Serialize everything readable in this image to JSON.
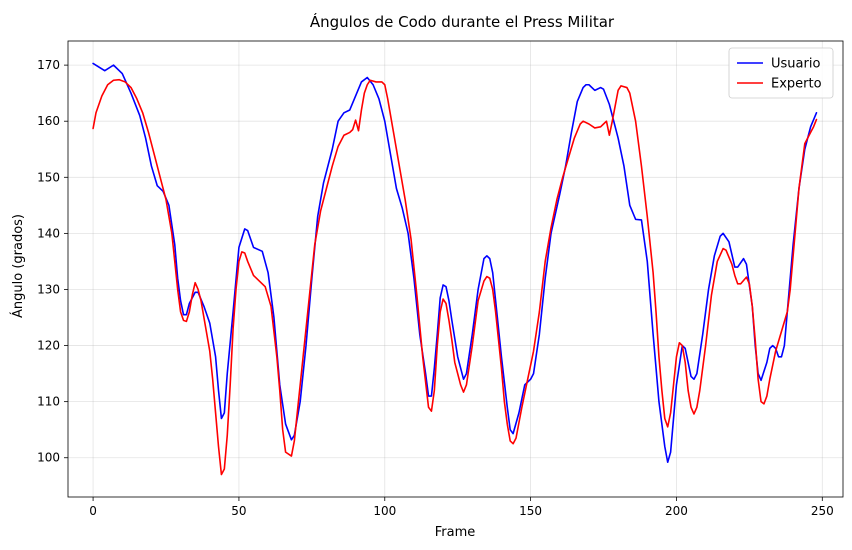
{
  "chart_data": {
    "type": "line",
    "title": "Ángulos de Codo durante el Press Militar",
    "xlabel": "Frame",
    "ylabel": "Ángulo (grados)",
    "xlim": [
      -8.6,
      257.1
    ],
    "ylim": [
      93.0,
      174.3
    ],
    "xticks": [
      0,
      50,
      100,
      150,
      200,
      250
    ],
    "yticks": [
      100,
      110,
      120,
      130,
      140,
      150,
      160,
      170
    ],
    "grid": true,
    "legend_position": "top-right",
    "series": [
      {
        "name": "Usuario",
        "color": "#0000ff",
        "points": [
          [
            0,
            170.3
          ],
          [
            4,
            169.0
          ],
          [
            7,
            170.0
          ],
          [
            10,
            168.5
          ],
          [
            13,
            165.0
          ],
          [
            16,
            161.0
          ],
          [
            18,
            157.0
          ],
          [
            20,
            152.0
          ],
          [
            22,
            148.5
          ],
          [
            24,
            147.5
          ],
          [
            26,
            145.0
          ],
          [
            28,
            138.0
          ],
          [
            29,
            132.0
          ],
          [
            30,
            128.0
          ],
          [
            31,
            125.5
          ],
          [
            32,
            125.5
          ],
          [
            33,
            127.5
          ],
          [
            35,
            129.5
          ],
          [
            36,
            129.5
          ],
          [
            38,
            127.0
          ],
          [
            40,
            124.0
          ],
          [
            42,
            118.0
          ],
          [
            43,
            112.0
          ],
          [
            44,
            107.0
          ],
          [
            45,
            108.0
          ],
          [
            46,
            115.0
          ],
          [
            48,
            126.0
          ],
          [
            50,
            137.5
          ],
          [
            52,
            140.8
          ],
          [
            53,
            140.5
          ],
          [
            55,
            137.5
          ],
          [
            58,
            136.8
          ],
          [
            60,
            133.0
          ],
          [
            62,
            125.0
          ],
          [
            64,
            113.0
          ],
          [
            66,
            106.0
          ],
          [
            68,
            103.2
          ],
          [
            69,
            104.0
          ],
          [
            71,
            110.0
          ],
          [
            73,
            120.0
          ],
          [
            75,
            132.0
          ],
          [
            77,
            143.0
          ],
          [
            79,
            149.0
          ],
          [
            82,
            155.0
          ],
          [
            84,
            160.0
          ],
          [
            86,
            161.5
          ],
          [
            88,
            162.0
          ],
          [
            90,
            164.5
          ],
          [
            92,
            167.0
          ],
          [
            94,
            167.8
          ],
          [
            96,
            166.5
          ],
          [
            98,
            164.0
          ],
          [
            100,
            160.0
          ],
          [
            102,
            154.0
          ],
          [
            104,
            148.0
          ],
          [
            106,
            144.5
          ],
          [
            108,
            140.0
          ],
          [
            110,
            132.0
          ],
          [
            112,
            122.0
          ],
          [
            114,
            115.0
          ],
          [
            115,
            111.0
          ],
          [
            116,
            111.0
          ],
          [
            117,
            116.0
          ],
          [
            118,
            122.0
          ],
          [
            119,
            128.5
          ],
          [
            120,
            130.8
          ],
          [
            121,
            130.5
          ],
          [
            122,
            128.0
          ],
          [
            123,
            124.5
          ],
          [
            125,
            118.0
          ],
          [
            127,
            114.0
          ],
          [
            128,
            115.0
          ],
          [
            130,
            122.0
          ],
          [
            132,
            130.0
          ],
          [
            134,
            135.5
          ],
          [
            135,
            136.0
          ],
          [
            136,
            135.5
          ],
          [
            137,
            133.0
          ],
          [
            138,
            128.0
          ],
          [
            140,
            118.0
          ],
          [
            142,
            109.0
          ],
          [
            143,
            105.0
          ],
          [
            144,
            104.3
          ],
          [
            146,
            108.0
          ],
          [
            148,
            113.0
          ],
          [
            150,
            114.0
          ],
          [
            151,
            115.0
          ],
          [
            153,
            122.0
          ],
          [
            155,
            132.0
          ],
          [
            157,
            140.0
          ],
          [
            160,
            147.0
          ],
          [
            162,
            152.0
          ],
          [
            164,
            158.0
          ],
          [
            166,
            163.5
          ],
          [
            168,
            166.0
          ],
          [
            169,
            166.5
          ],
          [
            170,
            166.5
          ],
          [
            172,
            165.5
          ],
          [
            174,
            166.0
          ],
          [
            175,
            165.7
          ],
          [
            177,
            163.0
          ],
          [
            180,
            157.0
          ],
          [
            182,
            152.0
          ],
          [
            184,
            145.0
          ],
          [
            186,
            142.5
          ],
          [
            188,
            142.4
          ],
          [
            190,
            135.0
          ],
          [
            192,
            122.0
          ],
          [
            194,
            110.0
          ],
          [
            196,
            102.0
          ],
          [
            197,
            99.2
          ],
          [
            198,
            101.0
          ],
          [
            200,
            113.0
          ],
          [
            202,
            120.0
          ],
          [
            203,
            119.5
          ],
          [
            205,
            114.5
          ],
          [
            206,
            114.0
          ],
          [
            207,
            115.0
          ],
          [
            209,
            122.0
          ],
          [
            211,
            130.0
          ],
          [
            213,
            136.0
          ],
          [
            215,
            139.5
          ],
          [
            216,
            140.0
          ],
          [
            218,
            138.5
          ],
          [
            220,
            134.0
          ],
          [
            221,
            134.0
          ],
          [
            223,
            135.5
          ],
          [
            224,
            134.5
          ],
          [
            226,
            127.0
          ],
          [
            227,
            120.0
          ],
          [
            228,
            115.0
          ],
          [
            229,
            113.8
          ],
          [
            231,
            117.0
          ],
          [
            232,
            119.5
          ],
          [
            233,
            120.0
          ],
          [
            234,
            119.5
          ],
          [
            235,
            118.0
          ],
          [
            236,
            118.0
          ],
          [
            237,
            120.0
          ],
          [
            238,
            126.0
          ],
          [
            240,
            138.0
          ],
          [
            242,
            148.0
          ],
          [
            244,
            155.0
          ],
          [
            246,
            159.0
          ],
          [
            248,
            161.5
          ]
        ]
      },
      {
        "name": "Experto",
        "color": "#ff0000",
        "points": [
          [
            0,
            158.7
          ],
          [
            1,
            161.5
          ],
          [
            3,
            164.5
          ],
          [
            5,
            166.5
          ],
          [
            7,
            167.3
          ],
          [
            9,
            167.4
          ],
          [
            11,
            167.0
          ],
          [
            13,
            166.0
          ],
          [
            15,
            164.0
          ],
          [
            17,
            161.5
          ],
          [
            19,
            158.0
          ],
          [
            21,
            154.0
          ],
          [
            23,
            150.0
          ],
          [
            25,
            146.0
          ],
          [
            27,
            140.0
          ],
          [
            28,
            135.0
          ],
          [
            29,
            130.0
          ],
          [
            30,
            126.0
          ],
          [
            31,
            124.5
          ],
          [
            32,
            124.3
          ],
          [
            33,
            126.0
          ],
          [
            34,
            129.0
          ],
          [
            35,
            131.2
          ],
          [
            36,
            130.0
          ],
          [
            37,
            128.0
          ],
          [
            38,
            125.0
          ],
          [
            40,
            119.0
          ],
          [
            41,
            114.0
          ],
          [
            42,
            108.0
          ],
          [
            43,
            102.0
          ],
          [
            44,
            97.0
          ],
          [
            45,
            98.0
          ],
          [
            46,
            104.0
          ],
          [
            47,
            113.0
          ],
          [
            48,
            123.0
          ],
          [
            49,
            130.0
          ],
          [
            50,
            135.0
          ],
          [
            51,
            136.7
          ],
          [
            52,
            136.5
          ],
          [
            53,
            135.0
          ],
          [
            55,
            132.5
          ],
          [
            57,
            131.5
          ],
          [
            59,
            130.5
          ],
          [
            61,
            127.0
          ],
          [
            63,
            118.0
          ],
          [
            64,
            112.0
          ],
          [
            65,
            105.0
          ],
          [
            66,
            101.0
          ],
          [
            68,
            100.3
          ],
          [
            69,
            103.0
          ],
          [
            70,
            108.0
          ],
          [
            72,
            118.0
          ],
          [
            74,
            128.0
          ],
          [
            76,
            138.0
          ],
          [
            78,
            144.0
          ],
          [
            80,
            148.0
          ],
          [
            82,
            152.0
          ],
          [
            84,
            155.5
          ],
          [
            86,
            157.5
          ],
          [
            88,
            158.0
          ],
          [
            89,
            158.5
          ],
          [
            90,
            160.2
          ],
          [
            91,
            158.3
          ],
          [
            92,
            162.0
          ],
          [
            93,
            165.0
          ],
          [
            94,
            166.5
          ],
          [
            95,
            167.3
          ],
          [
            97,
            167.0
          ],
          [
            99,
            167.0
          ],
          [
            100,
            166.5
          ],
          [
            101,
            164.0
          ],
          [
            103,
            158.0
          ],
          [
            105,
            152.0
          ],
          [
            107,
            146.0
          ],
          [
            109,
            139.0
          ],
          [
            111,
            129.0
          ],
          [
            113,
            118.0
          ],
          [
            115,
            109.0
          ],
          [
            116,
            108.3
          ],
          [
            117,
            112.0
          ],
          [
            118,
            120.0
          ],
          [
            119,
            126.0
          ],
          [
            120,
            128.3
          ],
          [
            121,
            127.5
          ],
          [
            122,
            124.5
          ],
          [
            123,
            121.0
          ],
          [
            124,
            117.0
          ],
          [
            126,
            113.0
          ],
          [
            127,
            111.7
          ],
          [
            128,
            113.0
          ],
          [
            130,
            120.0
          ],
          [
            132,
            128.0
          ],
          [
            134,
            131.5
          ],
          [
            135,
            132.3
          ],
          [
            136,
            132.0
          ],
          [
            137,
            130.0
          ],
          [
            138,
            126.0
          ],
          [
            139,
            121.0
          ],
          [
            140,
            116.0
          ],
          [
            141,
            110.0
          ],
          [
            142,
            106.0
          ],
          [
            143,
            103.0
          ],
          [
            144,
            102.5
          ],
          [
            145,
            103.5
          ],
          [
            147,
            109.0
          ],
          [
            149,
            114.0
          ],
          [
            151,
            119.0
          ],
          [
            153,
            126.0
          ],
          [
            155,
            135.0
          ],
          [
            157,
            141.0
          ],
          [
            159,
            146.0
          ],
          [
            161,
            150.0
          ],
          [
            163,
            153.5
          ],
          [
            165,
            157.0
          ],
          [
            167,
            159.5
          ],
          [
            168,
            160.0
          ],
          [
            170,
            159.5
          ],
          [
            172,
            158.8
          ],
          [
            174,
            159.0
          ],
          [
            175,
            159.5
          ],
          [
            176,
            160.0
          ],
          [
            177,
            157.5
          ],
          [
            178,
            160.0
          ],
          [
            180,
            165.5
          ],
          [
            181,
            166.3
          ],
          [
            183,
            166.0
          ],
          [
            184,
            165.0
          ],
          [
            186,
            160.0
          ],
          [
            188,
            152.0
          ],
          [
            190,
            143.0
          ],
          [
            192,
            133.0
          ],
          [
            193,
            126.0
          ],
          [
            194,
            118.0
          ],
          [
            195,
            112.0
          ],
          [
            196,
            107.0
          ],
          [
            197,
            105.5
          ],
          [
            198,
            108.0
          ],
          [
            199,
            113.0
          ],
          [
            200,
            118.0
          ],
          [
            201,
            120.5
          ],
          [
            202,
            120.0
          ],
          [
            203,
            117.0
          ],
          [
            204,
            112.0
          ],
          [
            205,
            109.0
          ],
          [
            206,
            107.8
          ],
          [
            207,
            109.0
          ],
          [
            208,
            112.0
          ],
          [
            210,
            120.0
          ],
          [
            212,
            129.0
          ],
          [
            214,
            135.0
          ],
          [
            216,
            137.3
          ],
          [
            217,
            137.0
          ],
          [
            219,
            134.5
          ],
          [
            220,
            132.5
          ],
          [
            221,
            131.0
          ],
          [
            222,
            131.0
          ],
          [
            224,
            132.2
          ],
          [
            225,
            131.0
          ],
          [
            226,
            127.0
          ],
          [
            227,
            121.0
          ],
          [
            228,
            114.0
          ],
          [
            229,
            110.0
          ],
          [
            230,
            109.6
          ],
          [
            231,
            111.0
          ],
          [
            232,
            114.0
          ],
          [
            234,
            119.0
          ],
          [
            236,
            122.5
          ],
          [
            238,
            126.0
          ],
          [
            239,
            130.0
          ],
          [
            240,
            136.0
          ],
          [
            241,
            142.0
          ],
          [
            242,
            148.0
          ],
          [
            243,
            152.0
          ],
          [
            244,
            156.0
          ],
          [
            245,
            157.0
          ],
          [
            246,
            158.0
          ],
          [
            247,
            159.0
          ],
          [
            248,
            160.3
          ]
        ]
      }
    ]
  }
}
